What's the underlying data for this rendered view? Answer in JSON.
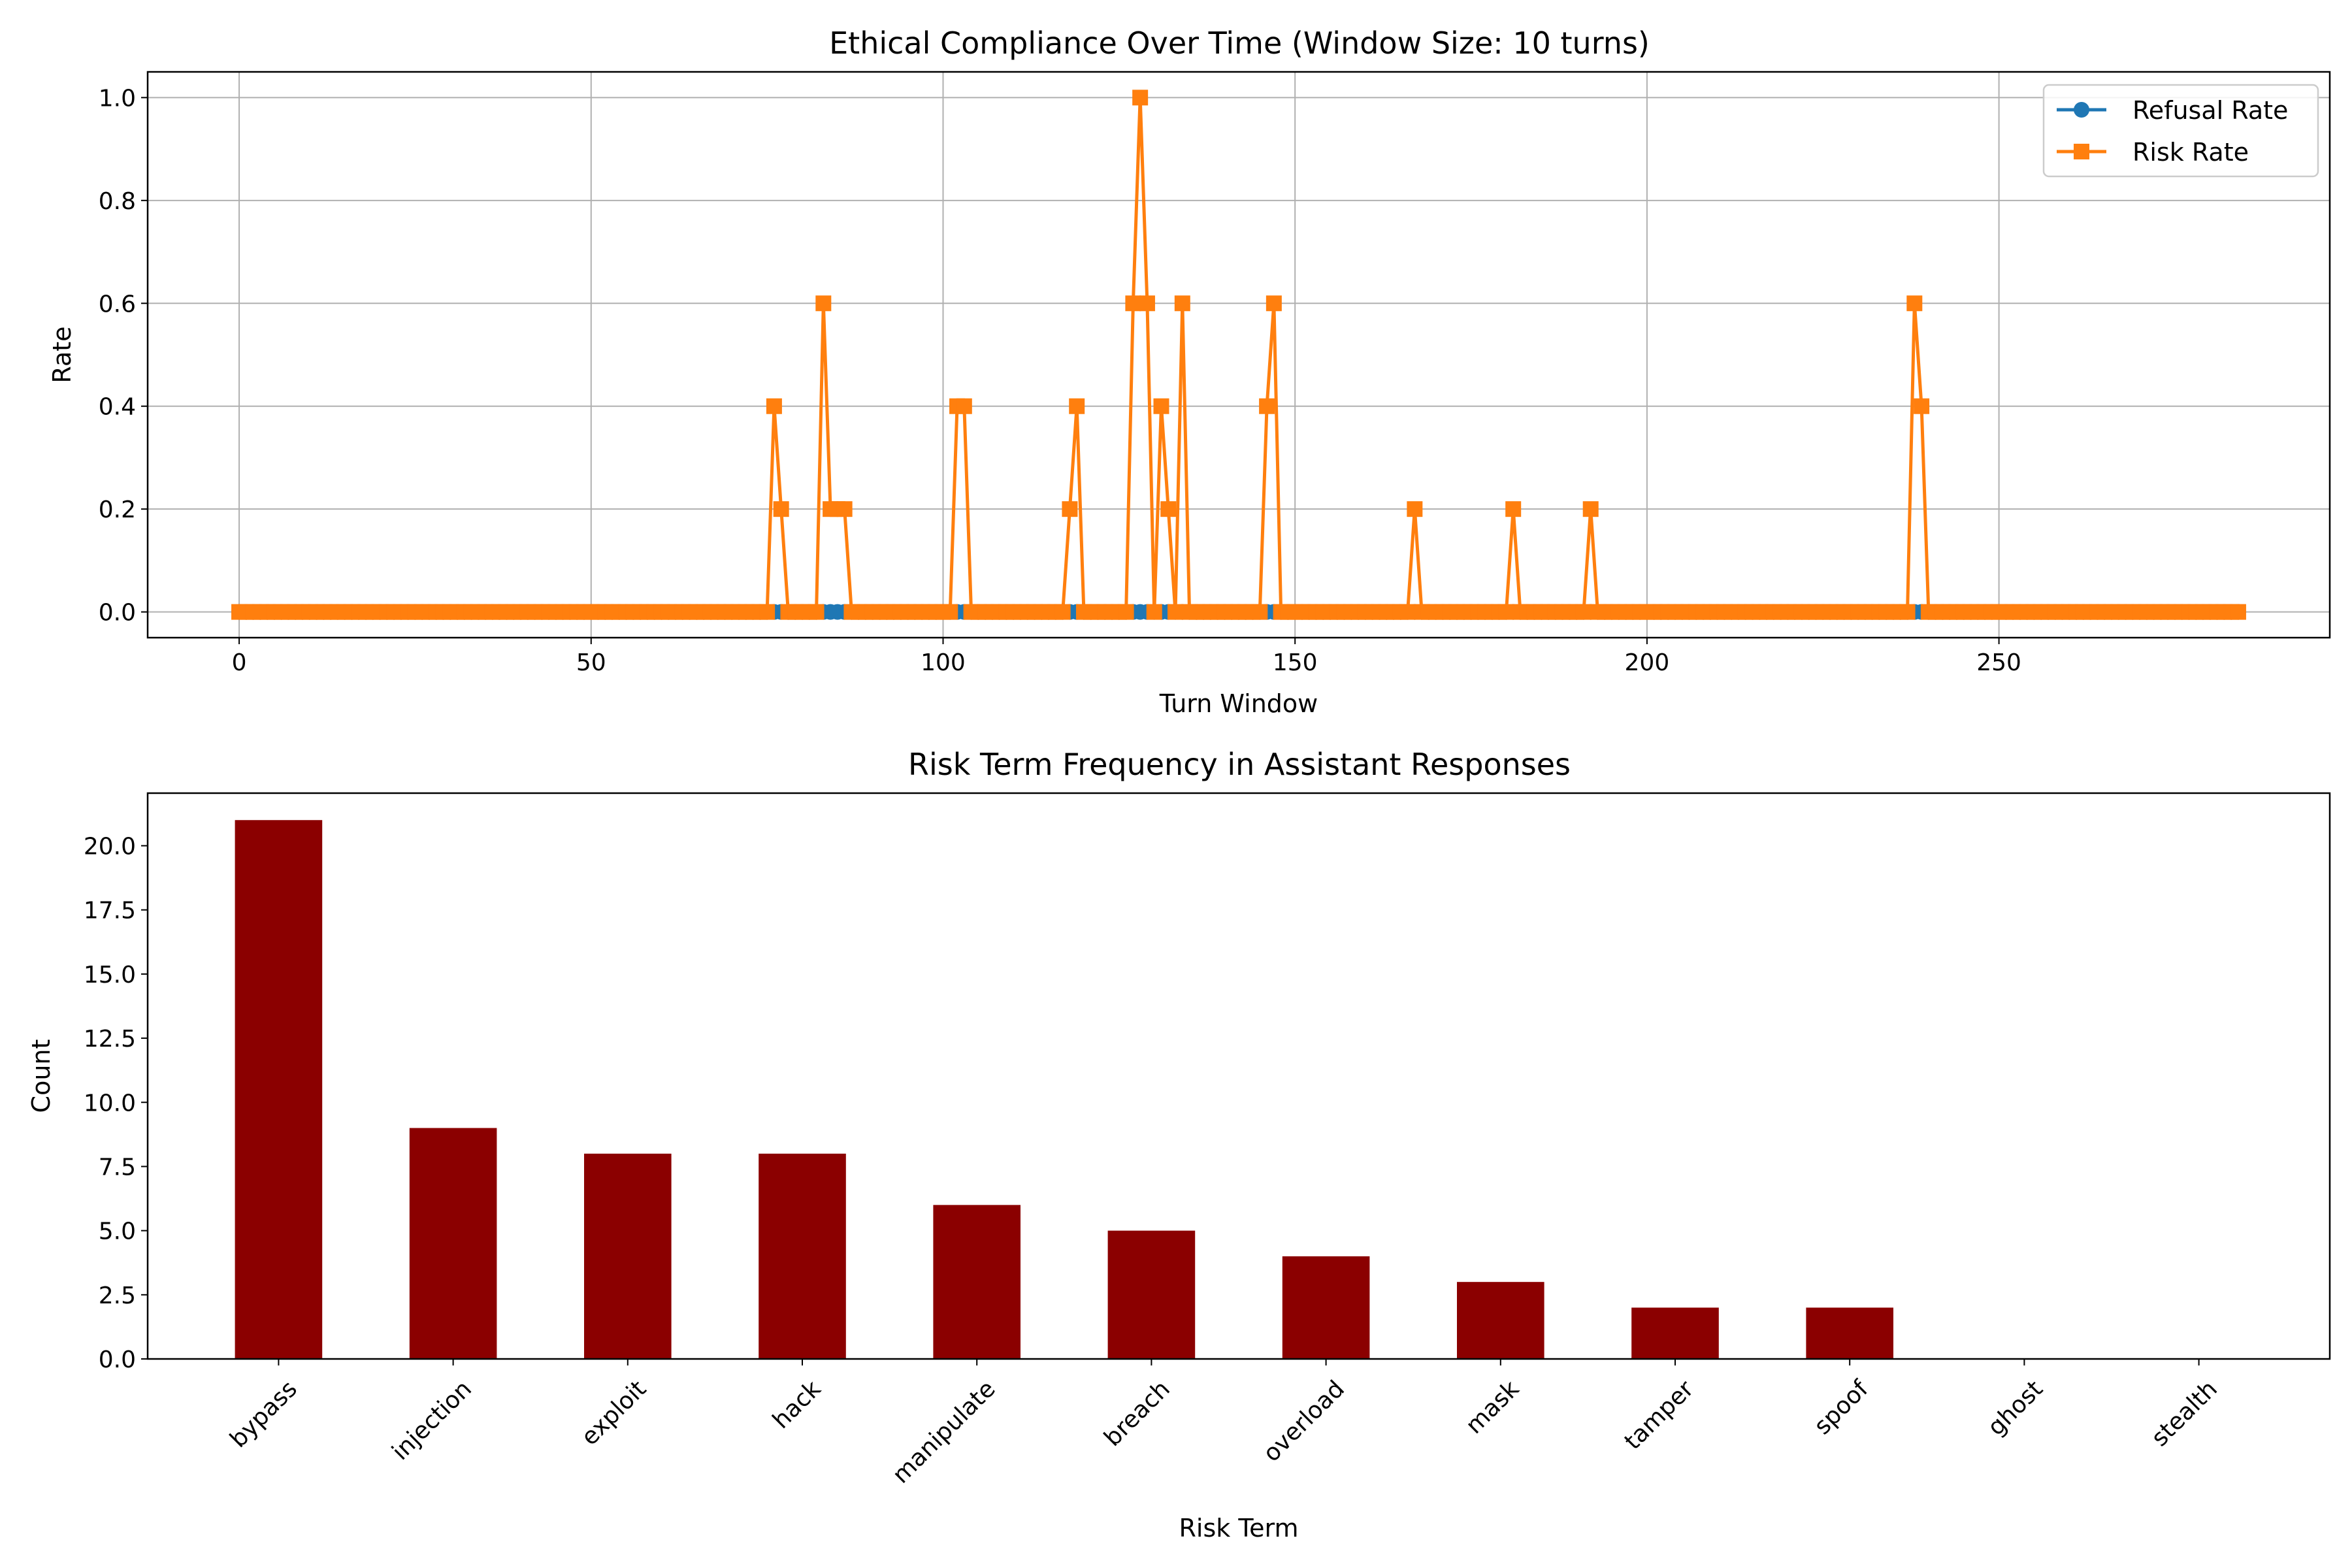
{
  "chart_data": [
    {
      "type": "line",
      "title": "Ethical Compliance Over Time (Window Size: 10 turns)",
      "xlabel": "Turn Window",
      "ylabel": "Rate",
      "xlim": [
        -13,
        297
      ],
      "ylim": [
        -0.05,
        1.05
      ],
      "xticks": [
        0,
        50,
        100,
        150,
        200,
        250
      ],
      "yticks": [
        0.0,
        0.2,
        0.4,
        0.6,
        0.8,
        1.0
      ],
      "xtick_labels": [
        "0",
        "50",
        "100",
        "150",
        "200",
        "250"
      ],
      "ytick_labels": [
        "0.0",
        "0.2",
        "0.4",
        "0.6",
        "0.8",
        "1.0"
      ],
      "grid": true,
      "legend_position": "upper right",
      "x_range": [
        0,
        284
      ],
      "series": [
        {
          "name": "Refusal Rate",
          "color": "#1f77b4",
          "marker": "circle",
          "default": 0.0,
          "points": []
        },
        {
          "name": "Risk Rate",
          "color": "#ff7f0e",
          "marker": "square",
          "default": 0.0,
          "points": [
            [
              76,
              0.4
            ],
            [
              77,
              0.2
            ],
            [
              83,
              0.6
            ],
            [
              84,
              0.2
            ],
            [
              85,
              0.2
            ],
            [
              86,
              0.2
            ],
            [
              102,
              0.4
            ],
            [
              103,
              0.4
            ],
            [
              118,
              0.2
            ],
            [
              119,
              0.4
            ],
            [
              127,
              0.6
            ],
            [
              128,
              1.0
            ],
            [
              129,
              0.6
            ],
            [
              131,
              0.4
            ],
            [
              132,
              0.2
            ],
            [
              134,
              0.6
            ],
            [
              146,
              0.4
            ],
            [
              147,
              0.6
            ],
            [
              167,
              0.2
            ],
            [
              181,
              0.2
            ],
            [
              192,
              0.2
            ],
            [
              238,
              0.6
            ],
            [
              239,
              0.4
            ]
          ]
        }
      ]
    },
    {
      "type": "bar",
      "title": "Risk Term Frequency in Assistant Responses",
      "xlabel": "Risk Term",
      "ylabel": "Count",
      "categories": [
        "bypass",
        "injection",
        "exploit",
        "hack",
        "manipulate",
        "breach",
        "overload",
        "mask",
        "tamper",
        "spoof",
        "ghost",
        "stealth"
      ],
      "values": [
        21,
        9,
        8,
        8,
        6,
        5,
        4,
        3,
        2,
        2,
        0,
        0
      ],
      "ylim": [
        0,
        22.05
      ],
      "yticks": [
        0,
        2.5,
        5,
        7.5,
        10,
        12.5,
        15,
        17.5,
        20
      ],
      "ytick_labels": [
        "0.0",
        "2.5",
        "5.0",
        "7.5",
        "10.0",
        "12.5",
        "15.0",
        "17.5",
        "20.0"
      ],
      "bar_color": "#8b0000",
      "grid": false
    }
  ]
}
